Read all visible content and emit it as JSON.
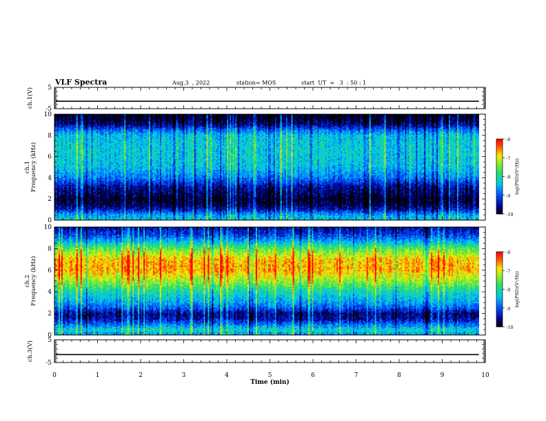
{
  "header": {
    "title": "VLF Spectra",
    "date": "Aug.3  , 2022",
    "station": "station= MOS",
    "start": "start  UT  =   3  : 50 : 1"
  },
  "chart_data": [
    {
      "type": "line",
      "panel": "ch1-waveform",
      "ylabel": "ch.1(V)",
      "ylim": [
        -5,
        5
      ],
      "yticks": [
        "5",
        "-5"
      ],
      "xlim": [
        0,
        10
      ],
      "series": [
        {
          "values": [
            -1.5,
            -1.5
          ]
        }
      ]
    },
    {
      "type": "heatmap",
      "panel": "ch1-spectrogram",
      "ylabel": "ch.1\nFrequency (kHz)",
      "ylim": [
        0,
        10
      ],
      "yticks": [
        "0",
        "2",
        "4",
        "6",
        "8",
        "10"
      ],
      "xlim": [
        0,
        10
      ],
      "data_end_min": 9.85,
      "colorbar": {
        "label": "log(PSD)(V²/Hz)",
        "range": [
          -10,
          -6
        ],
        "ticks": [
          "-6",
          "-7",
          "-8",
          "-9",
          "-10"
        ]
      },
      "freq_profile_khz": [
        0,
        0.5,
        1,
        1.5,
        2,
        2.5,
        3,
        3.5,
        4,
        5,
        6,
        7,
        8,
        8.5,
        9,
        9.5,
        10
      ],
      "log_psd_profile": [
        -8.3,
        -8.6,
        -9.4,
        -9.8,
        -9.9,
        -9.7,
        -9.6,
        -9.2,
        -8.8,
        -8.4,
        -8.3,
        -8.3,
        -8.4,
        -8.9,
        -9.6,
        -9.9,
        -9.95
      ]
    },
    {
      "type": "heatmap",
      "panel": "ch2-spectrogram",
      "ylabel": "ch.2\nFrequency (kHz)",
      "ylim": [
        0,
        10
      ],
      "yticks": [
        "0",
        "2",
        "4",
        "6",
        "8",
        "10"
      ],
      "xlim": [
        0,
        10
      ],
      "data_end_min": 9.85,
      "colorbar": {
        "label": "log(PSD)(V²/Hz)",
        "range": [
          -10,
          -6
        ],
        "ticks": [
          "-6",
          "-7",
          "-8",
          "-9",
          "-10"
        ]
      },
      "freq_profile_khz": [
        0,
        0.5,
        1,
        1.5,
        2,
        2.5,
        3,
        4,
        5,
        6,
        7,
        8,
        8.5,
        9,
        9.5,
        10
      ],
      "log_psd_profile": [
        -8.6,
        -8.2,
        -8.9,
        -9.5,
        -9.6,
        -9.0,
        -8.6,
        -8.1,
        -7.3,
        -6.7,
        -6.8,
        -7.6,
        -8.3,
        -8.9,
        -9.3,
        -9.5
      ]
    },
    {
      "type": "line",
      "panel": "ch3-waveform",
      "ylabel": "ch.3(V)",
      "ylim": [
        -5,
        5
      ],
      "yticks": [
        "5",
        "-5"
      ],
      "xlim": [
        0,
        10
      ],
      "xlabel": "Time  (min)",
      "xticks": [
        "0",
        "1",
        "2",
        "3",
        "4",
        "5",
        "6",
        "7",
        "8",
        "9",
        "10"
      ],
      "series": [
        {
          "values": [
            -1.5,
            -1.5
          ]
        }
      ]
    }
  ]
}
